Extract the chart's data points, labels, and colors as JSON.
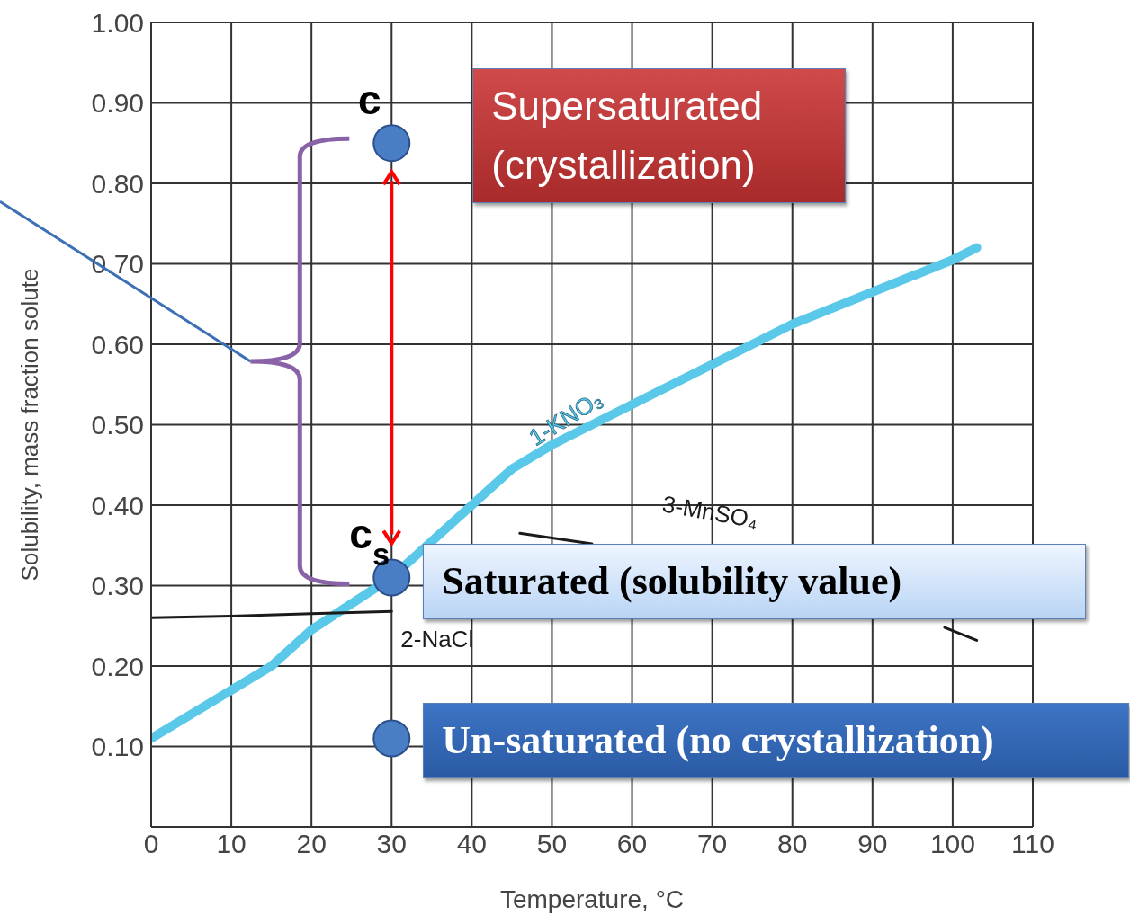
{
  "chart_data": {
    "type": "line",
    "xlabel": "Temperature, °C",
    "ylabel": "Solubility, mass fraction solute",
    "xlim": [
      0,
      110
    ],
    "xticks": [
      0,
      10,
      20,
      30,
      40,
      50,
      60,
      70,
      80,
      90,
      100,
      110
    ],
    "ylim": [
      0,
      1
    ],
    "yticks": [
      {
        "value": 0.1,
        "label": "0.10"
      },
      {
        "value": 0.2,
        "label": "0.20"
      },
      {
        "value": 0.3,
        "label": "0.30"
      },
      {
        "value": 0.4,
        "label": "0.40"
      },
      {
        "value": 0.5,
        "label": "0.50"
      },
      {
        "value": 0.6,
        "label": "0.60"
      },
      {
        "value": 0.7,
        "label": "0.70"
      },
      {
        "value": 0.8,
        "label": "0.80"
      },
      {
        "value": 0.9,
        "label": "0.90"
      },
      {
        "value": 1,
        "label": "1.00"
      }
    ],
    "grid": true,
    "legend": false,
    "series": [
      {
        "name": "1-KNO₃",
        "color": "#5ac8e8",
        "x": [
          0,
          10,
          15,
          20,
          30,
          40,
          45,
          50,
          60,
          70,
          80,
          90,
          100,
          103
        ],
        "values": [
          0.11,
          0.17,
          0.2,
          0.245,
          0.31,
          0.4,
          0.445,
          0.475,
          0.525,
          0.575,
          0.625,
          0.665,
          0.705,
          0.72
        ]
      },
      {
        "name": "2-NaCl",
        "color": "#1a1a1a",
        "x": [
          0,
          10,
          20,
          30
        ],
        "values": [
          0.26,
          0.262,
          0.265,
          0.268
        ]
      },
      {
        "name": "3-MnSO₄",
        "color": "#1a1a1a",
        "x": [
          46,
          55,
          72,
          99,
          103
        ],
        "values": [
          0.365,
          0.352,
          null,
          0.248,
          0.232
        ]
      },
      {
        "type": "scatter",
        "color": "#4a7ec4",
        "x": [
          30,
          30,
          30
        ],
        "values": [
          0.85,
          0.31,
          0.11
        ],
        "value_labels": [
          "c",
          "c$_{s}$",
          null
        ]
      }
    ],
    "annotations": [
      "Supersaturated (crystallization)",
      "Saturated (solubility value)",
      "Un-saturated (no crystallization)"
    ]
  }
}
